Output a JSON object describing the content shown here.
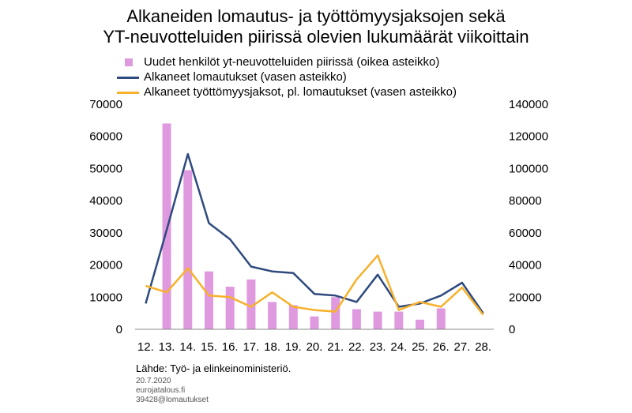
{
  "title_line1": "Alkaneiden lomautus- ja työttömyysjaksojen sekä",
  "title_line2": "YT-neuvotteluiden piirissä olevien lukumäärät viikoittain",
  "legend": {
    "bars": "Uudet henkilöt yt-neuvotteluiden piirissä (oikea asteikko)",
    "line1": "Alkaneet lomautukset (vasen asteikko)",
    "line2": "Alkaneet työttömyysjaksot, pl. lomautukset (vasen asteikko)"
  },
  "source": "Lähde:  Työ- ja elinkeinoministeriö.",
  "date": "20.7.2020",
  "site": "eurojatalous.fi",
  "code": "39428@lomautukset",
  "colors": {
    "bars": "#df99df",
    "line1": "#2e4a7e",
    "line2": "#f7b12a"
  },
  "chart_data": {
    "type": "bar+line",
    "categories": [
      "12.",
      "13.",
      "14.",
      "15.",
      "16.",
      "17.",
      "18.",
      "19.",
      "20.",
      "21.",
      "22.",
      "23.",
      "24.",
      "25.",
      "26.",
      "27.",
      "28."
    ],
    "left_axis": {
      "ylim": [
        0,
        70000
      ],
      "ticks": [
        "0",
        "10000",
        "20000",
        "30000",
        "40000",
        "50000",
        "60000",
        "70000"
      ]
    },
    "right_axis": {
      "ylim": [
        0,
        140000
      ],
      "ticks": [
        "0",
        "20000",
        "40000",
        "60000",
        "80000",
        "100000",
        "120000",
        "140000"
      ]
    },
    "series": [
      {
        "name": "Uudet henkilöt yt-neuvotteluiden piirissä (oikea asteikko)",
        "type": "bar",
        "axis": "right",
        "values": [
          null,
          128000,
          99000,
          36000,
          26500,
          31000,
          17000,
          15000,
          8000,
          20000,
          12500,
          11000,
          11000,
          6000,
          13000,
          null,
          null
        ]
      },
      {
        "name": "Alkaneet lomautukset (vasen asteikko)",
        "type": "line",
        "axis": "left",
        "values": [
          8000,
          31000,
          54500,
          33000,
          28000,
          19500,
          18000,
          17500,
          11000,
          10500,
          8500,
          17000,
          7000,
          8000,
          10500,
          14500,
          5000
        ]
      },
      {
        "name": "Alkaneet työttömyysjaksot, pl. lomautukset (vasen asteikko)",
        "type": "line",
        "axis": "left",
        "values": [
          13500,
          11500,
          19000,
          10500,
          10000,
          7000,
          11500,
          7000,
          6000,
          5500,
          15500,
          23000,
          6000,
          8500,
          7000,
          13000,
          4500
        ]
      }
    ],
    "grid": false
  }
}
